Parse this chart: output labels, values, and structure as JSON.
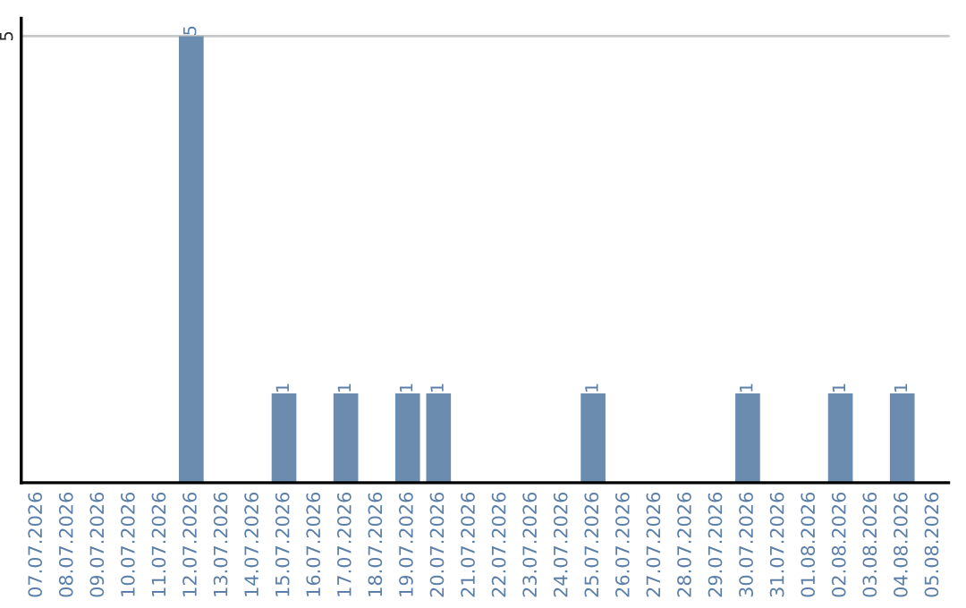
{
  "chart_data": {
    "type": "bar",
    "categories": [
      "07.07.2026",
      "08.07.2026",
      "09.07.2026",
      "10.07.2026",
      "11.07.2026",
      "12.07.2026",
      "13.07.2026",
      "14.07.2026",
      "15.07.2026",
      "16.07.2026",
      "17.07.2026",
      "18.07.2026",
      "19.07.2026",
      "20.07.2026",
      "21.07.2026",
      "22.07.2026",
      "23.07.2026",
      "24.07.2026",
      "25.07.2026",
      "26.07.2026",
      "27.07.2026",
      "28.07.2026",
      "29.07.2026",
      "30.07.2026",
      "31.07.2026",
      "01.08.2026",
      "02.08.2026",
      "03.08.2026",
      "04.08.2026",
      "05.08.2026"
    ],
    "values": [
      0,
      0,
      0,
      0,
      0,
      5,
      0,
      0,
      1,
      0,
      1,
      0,
      1,
      1,
      0,
      0,
      0,
      0,
      1,
      0,
      0,
      0,
      0,
      1,
      0,
      0,
      1,
      0,
      1,
      0
    ],
    "value_labels": [
      null,
      null,
      null,
      null,
      null,
      "5",
      null,
      null,
      "1",
      null,
      "1",
      null,
      "1",
      "1",
      null,
      null,
      null,
      null,
      "1",
      null,
      null,
      null,
      null,
      "1",
      null,
      null,
      "1",
      null,
      "1",
      null
    ],
    "color": "#6b8cae",
    "ylim": [
      0,
      5.2
    ],
    "yticks": [
      5
    ],
    "grid": "y"
  }
}
